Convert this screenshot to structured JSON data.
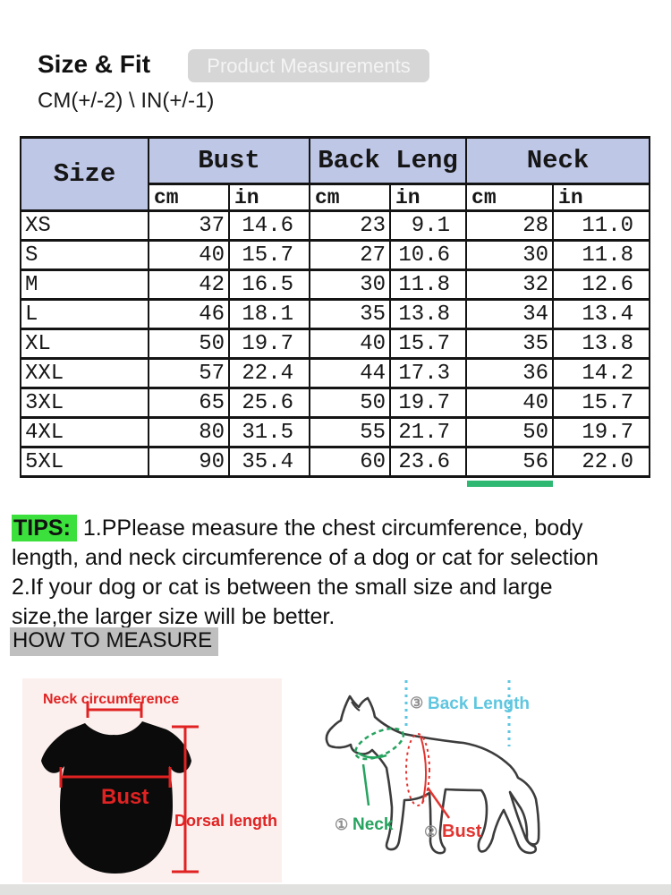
{
  "header": {
    "title": "Size & Fit",
    "badge": "Product Measurements",
    "tolerance": "CM(+/-2) \\ IN(+/-1)"
  },
  "table": {
    "size_header": "Size",
    "groups": [
      "Bust",
      "Back Leng",
      "Neck"
    ],
    "units": [
      "cm",
      "in",
      "cm",
      "in",
      "cm",
      "in"
    ],
    "rows": [
      {
        "size": "XS",
        "values": [
          "37",
          "14.6",
          "23",
          "9.1",
          "28",
          "11.0"
        ]
      },
      {
        "size": "S",
        "values": [
          "40",
          "15.7",
          "27",
          "10.6",
          "30",
          "11.8"
        ]
      },
      {
        "size": "M",
        "values": [
          "42",
          "16.5",
          "30",
          "11.8",
          "32",
          "12.6"
        ]
      },
      {
        "size": "L",
        "values": [
          "46",
          "18.1",
          "35",
          "13.8",
          "34",
          "13.4"
        ]
      },
      {
        "size": "XL",
        "values": [
          "50",
          "19.7",
          "40",
          "15.7",
          "35",
          "13.8"
        ]
      },
      {
        "size": "XXL",
        "values": [
          "57",
          "22.4",
          "44",
          "17.3",
          "36",
          "14.2"
        ]
      },
      {
        "size": "3XL",
        "values": [
          "65",
          "25.6",
          "50",
          "19.7",
          "40",
          "15.7"
        ]
      },
      {
        "size": "4XL",
        "values": [
          "80",
          "31.5",
          "55",
          "21.7",
          "50",
          "19.7"
        ]
      },
      {
        "size": "5XL",
        "values": [
          "90",
          "35.4",
          "60",
          "23.6",
          "56",
          "22.0"
        ]
      }
    ]
  },
  "tips": {
    "label": "TIPS:",
    "lines": [
      "1.PPlease measure the chest circumference, body",
      "length, and neck circumference of a dog or cat for selection",
      "2.If your dog or cat is between the small size and large",
      "size,the larger size will be better."
    ]
  },
  "how_to_measure": "HOW TO MEASURE",
  "shirt_diagram": {
    "neck_label": "Neck circumference",
    "bust_label": "Bust",
    "dorsal_label": "Dorsal length"
  },
  "dog_diagram": {
    "back_num": "③",
    "back_label": "Back Length",
    "neck_num": "①",
    "neck_label": "Neck",
    "bust_num": "②",
    "bust_label": "Bust"
  },
  "colors": {
    "header_bg": "#bfc7e7",
    "tips_green": "#3ce03c",
    "measure_gray": "#bfbfbf",
    "underline_green": "#2eb872",
    "badge_bg": "#d6d6d6",
    "shirt_red": "#e02222",
    "dog_green": "#26a35f",
    "dog_red": "#e23430",
    "dog_blue": "#5fc6e0"
  }
}
